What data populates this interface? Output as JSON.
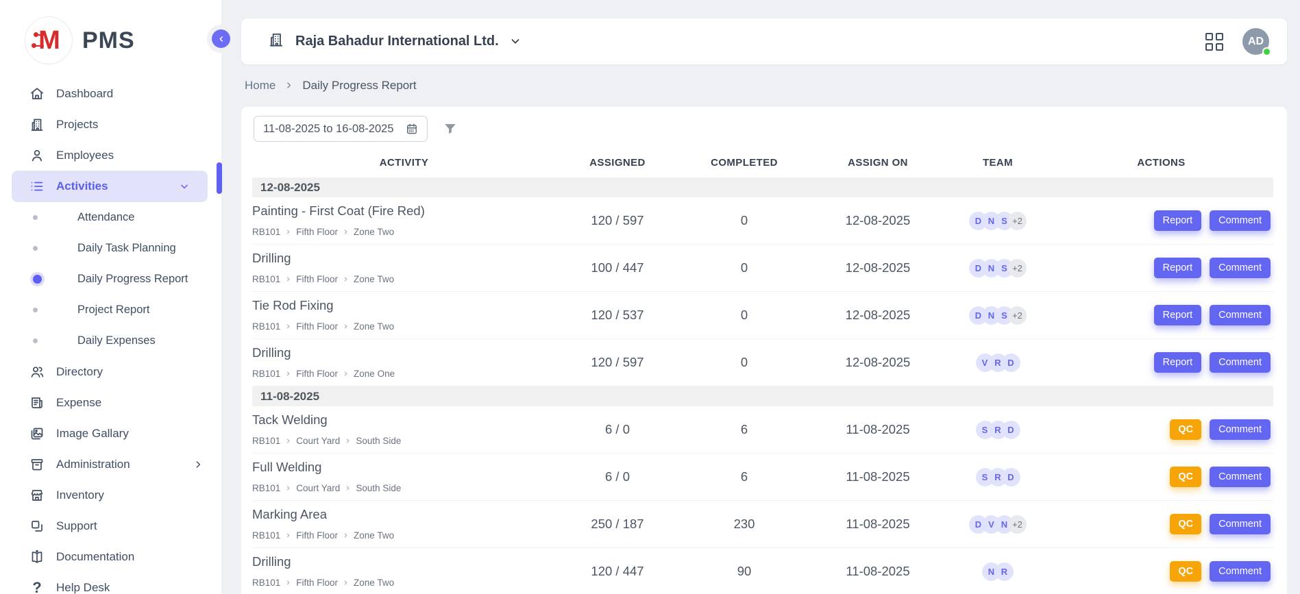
{
  "app": {
    "name": "PMS"
  },
  "sidebar": {
    "items": [
      {
        "label": "Dashboard"
      },
      {
        "label": "Projects"
      },
      {
        "label": "Employees"
      },
      {
        "label": "Activities",
        "active": true,
        "expanded": true
      },
      {
        "label": "Directory"
      },
      {
        "label": "Expense"
      },
      {
        "label": "Image Gallary"
      },
      {
        "label": "Administration",
        "has_submenu": true
      },
      {
        "label": "Inventory"
      },
      {
        "label": "Support"
      },
      {
        "label": "Documentation"
      },
      {
        "label": "Help Desk"
      }
    ],
    "activities_children": [
      {
        "label": "Attendance",
        "active": false
      },
      {
        "label": "Daily Task Planning",
        "active": false
      },
      {
        "label": "Daily Progress Report",
        "active": true
      },
      {
        "label": "Project Report",
        "active": false
      },
      {
        "label": "Daily Expenses",
        "active": false
      }
    ]
  },
  "header": {
    "company": "Raja Bahadur International Ltd.",
    "avatar_initials": "AD"
  },
  "breadcrumb": {
    "home": "Home",
    "current": "Daily Progress Report"
  },
  "filters": {
    "date_range": "11-08-2025 to 16-08-2025"
  },
  "table": {
    "columns": [
      "Activity",
      "Assigned",
      "Completed",
      "Assign On",
      "Team",
      "Actions"
    ],
    "groups": [
      {
        "date": "12-08-2025",
        "rows": [
          {
            "title": "Painting - First Coat (Fire Red)",
            "path": [
              "RB101",
              "Fifth Floor",
              "Zone Two"
            ],
            "assigned": "120 / 597",
            "completed": "0",
            "assign_on": "12-08-2025",
            "team": [
              "D",
              "N",
              "S",
              "+2"
            ],
            "actions": [
              {
                "label": "Report",
                "style": "primary"
              },
              {
                "label": "Comment",
                "style": "primary"
              }
            ]
          },
          {
            "title": "Drilling",
            "path": [
              "RB101",
              "Fifth Floor",
              "Zone Two"
            ],
            "assigned": "100 / 447",
            "completed": "0",
            "assign_on": "12-08-2025",
            "team": [
              "D",
              "N",
              "S",
              "+2"
            ],
            "actions": [
              {
                "label": "Report",
                "style": "primary"
              },
              {
                "label": "Comment",
                "style": "primary"
              }
            ]
          },
          {
            "title": "Tie Rod Fixing",
            "path": [
              "RB101",
              "Fifth Floor",
              "Zone Two"
            ],
            "assigned": "120 / 537",
            "completed": "0",
            "assign_on": "12-08-2025",
            "team": [
              "D",
              "N",
              "S",
              "+2"
            ],
            "actions": [
              {
                "label": "Report",
                "style": "primary"
              },
              {
                "label": "Comment",
                "style": "primary"
              }
            ]
          },
          {
            "title": "Drilling",
            "path": [
              "RB101",
              "Fifth Floor",
              "Zone One"
            ],
            "assigned": "120 / 597",
            "completed": "0",
            "assign_on": "12-08-2025",
            "team": [
              "V",
              "R",
              "D"
            ],
            "actions": [
              {
                "label": "Report",
                "style": "primary"
              },
              {
                "label": "Comment",
                "style": "primary"
              }
            ]
          }
        ]
      },
      {
        "date": "11-08-2025",
        "rows": [
          {
            "title": "Tack Welding",
            "path": [
              "RB101",
              "Court Yard",
              "South Side"
            ],
            "assigned": "6 / 0",
            "completed": "6",
            "assign_on": "11-08-2025",
            "team": [
              "S",
              "R",
              "D"
            ],
            "actions": [
              {
                "label": "QC",
                "style": "warning"
              },
              {
                "label": "Comment",
                "style": "primary"
              }
            ]
          },
          {
            "title": "Full Welding",
            "path": [
              "RB101",
              "Court Yard",
              "South Side"
            ],
            "assigned": "6 / 0",
            "completed": "6",
            "assign_on": "11-08-2025",
            "team": [
              "S",
              "R",
              "D"
            ],
            "actions": [
              {
                "label": "QC",
                "style": "warning"
              },
              {
                "label": "Comment",
                "style": "primary"
              }
            ]
          },
          {
            "title": "Marking Area",
            "path": [
              "RB101",
              "Fifth Floor",
              "Zone Two"
            ],
            "assigned": "250 / 187",
            "completed": "230",
            "assign_on": "11-08-2025",
            "team": [
              "D",
              "V",
              "N",
              "+2"
            ],
            "actions": [
              {
                "label": "QC",
                "style": "warning"
              },
              {
                "label": "Comment",
                "style": "primary"
              }
            ]
          },
          {
            "title": "Drilling",
            "path": [
              "RB101",
              "Fifth Floor",
              "Zone Two"
            ],
            "assigned": "120 / 447",
            "completed": "90",
            "assign_on": "11-08-2025",
            "team": [
              "N",
              "R"
            ],
            "actions": [
              {
                "label": "QC",
                "style": "warning"
              },
              {
                "label": "Comment",
                "style": "primary"
              }
            ]
          }
        ]
      }
    ]
  },
  "colors": {
    "accent": "#6366f1",
    "warning": "#f7a408",
    "badge_bg": "#e1e3fc",
    "avatar_bg": "#8d9aaa",
    "online": "#3fd13f",
    "logo_red": "#d92b2b"
  }
}
